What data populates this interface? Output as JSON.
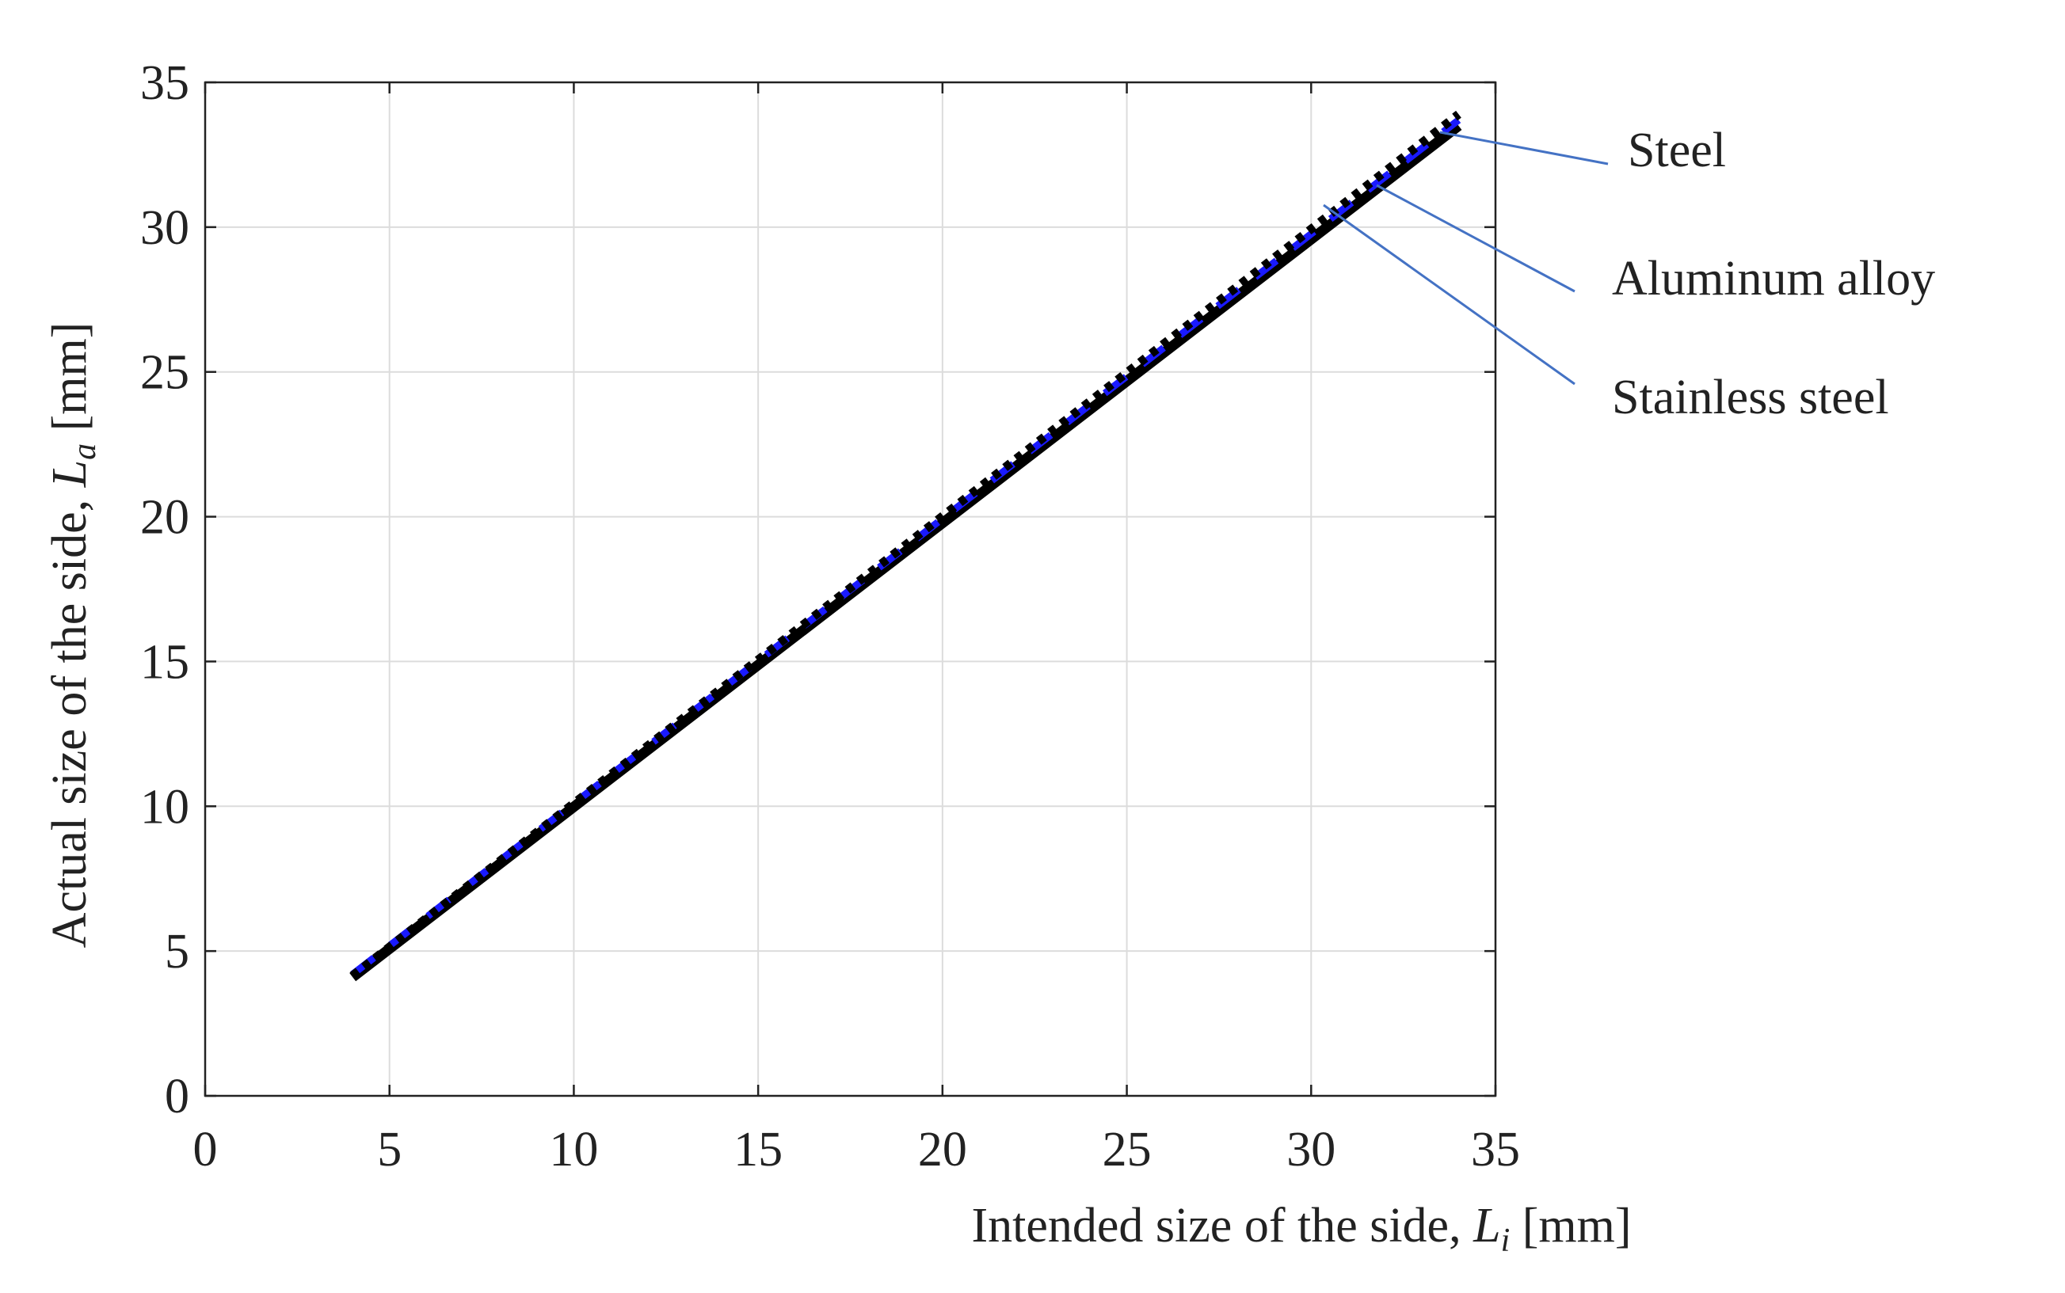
{
  "chart_data": {
    "type": "line",
    "x": [
      4,
      34
    ],
    "series": [
      {
        "name": "Steel",
        "color": "#000000",
        "style": "solid",
        "values": [
          4.1,
          33.5
        ]
      },
      {
        "name": "Aluminum alloy",
        "color": "#1a1aff",
        "style": "dashed",
        "values": [
          4.2,
          33.7
        ]
      },
      {
        "name": "Stainless steel",
        "color": "#000000",
        "style": "dotted",
        "values": [
          4.15,
          33.9
        ]
      }
    ],
    "xlabel": {
      "text": "Intended size of the side, ",
      "symbol": "L",
      "subscript": "i",
      "unit": " [mm]"
    },
    "ylabel": {
      "text": "Actual size of the side, ",
      "symbol": "L",
      "subscript": "a",
      "unit": " [mm]"
    },
    "xlim": [
      0,
      35
    ],
    "xticks": [
      0,
      5,
      10,
      15,
      20,
      25,
      30,
      35
    ],
    "ylim": [
      0,
      35
    ],
    "yticks": [
      0,
      5,
      10,
      15,
      20,
      25,
      30,
      35
    ],
    "grid": true
  }
}
